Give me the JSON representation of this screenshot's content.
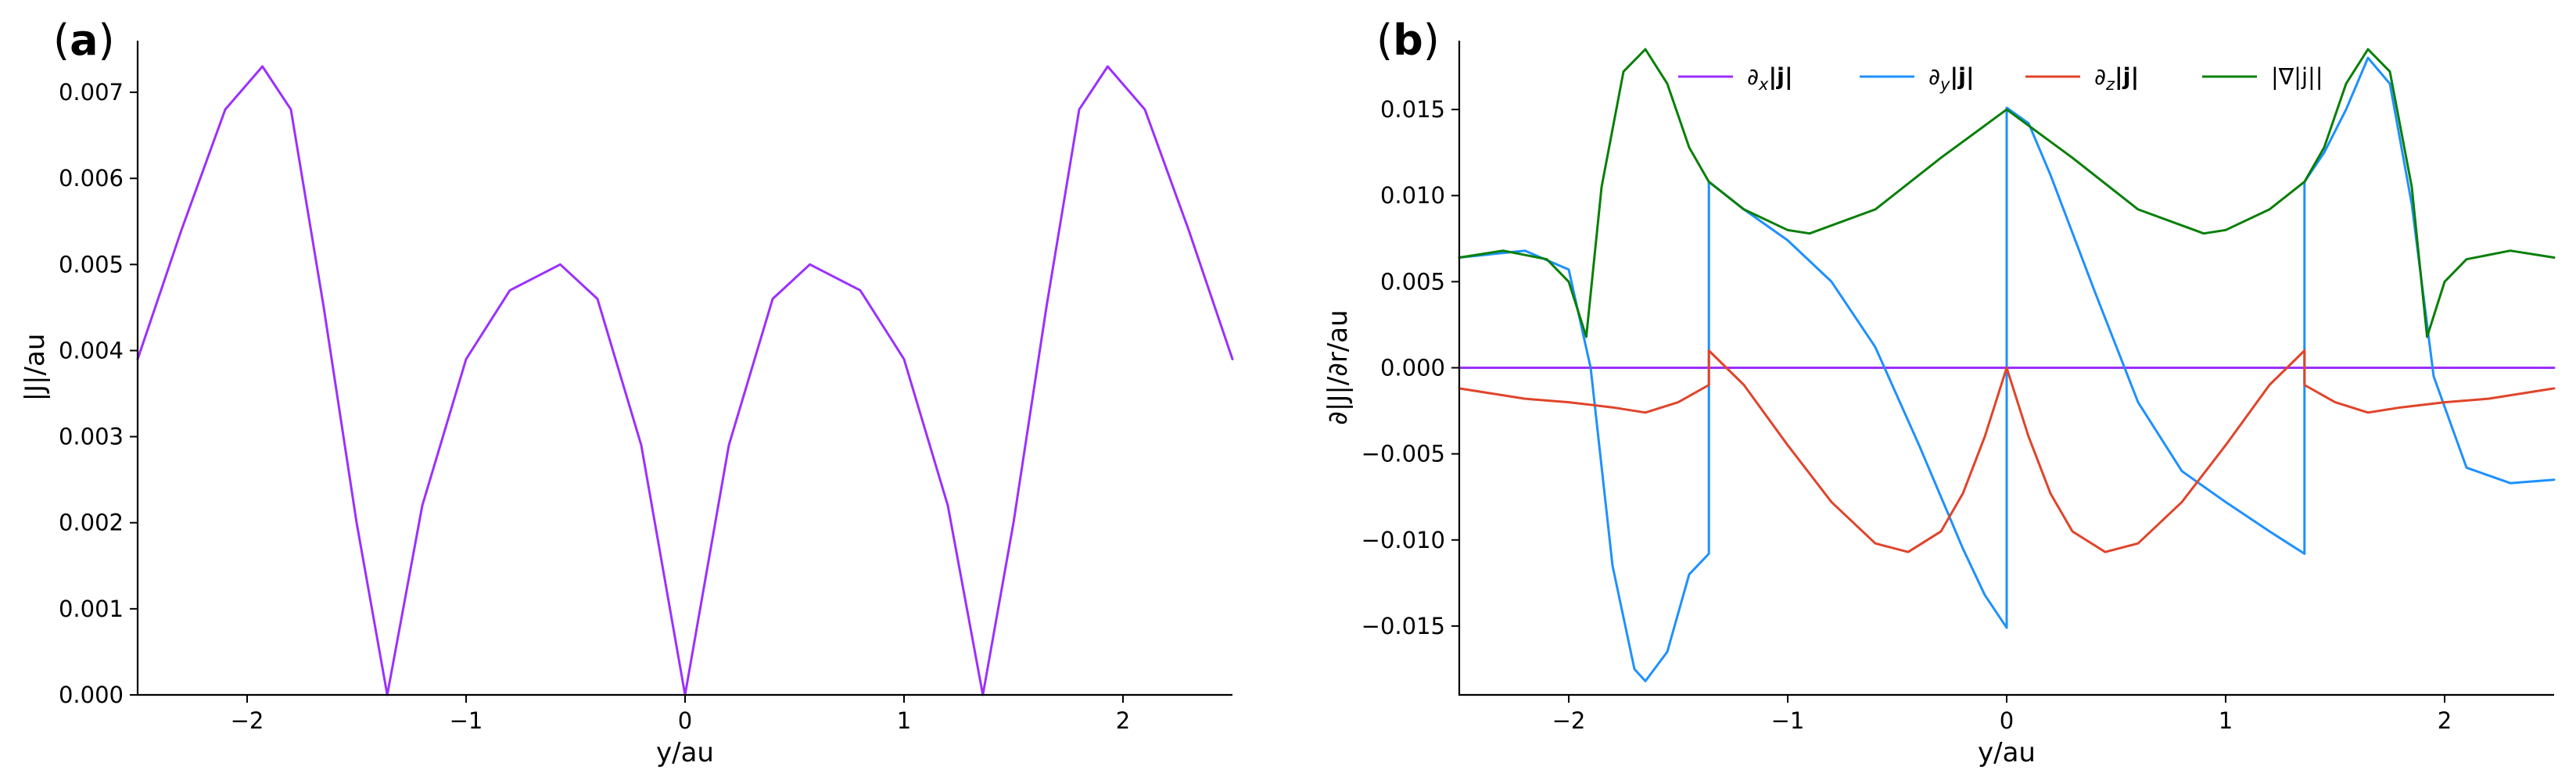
{
  "chart_data": [
    {
      "type": "line",
      "panel_label": "a",
      "xlabel": "y/au",
      "ylabel": "|J|/au",
      "xlim": [
        -2.5,
        2.5
      ],
      "ylim": [
        0,
        0.0076
      ],
      "xticks": [
        -2,
        -1,
        0,
        1,
        2
      ],
      "xtick_labels": [
        "−2",
        "−1",
        "0",
        "1",
        "2"
      ],
      "yticks": [
        0,
        0.001,
        0.002,
        0.003,
        0.004,
        0.005,
        0.006,
        0.007
      ],
      "ytick_labels": [
        "0.000",
        "0.001",
        "0.002",
        "0.003",
        "0.004",
        "0.005",
        "0.006",
        "0.007"
      ],
      "series": [
        {
          "name": "|J|",
          "color": "#9b30ff",
          "x": [
            -2.5,
            -2.3,
            -2.1,
            -1.93,
            -1.8,
            -1.65,
            -1.5,
            -1.36,
            -1.2,
            -1.0,
            -0.8,
            -0.57,
            -0.4,
            -0.2,
            0.0,
            0.2,
            0.4,
            0.57,
            0.8,
            1.0,
            1.2,
            1.36,
            1.5,
            1.65,
            1.8,
            1.93,
            2.1,
            2.3,
            2.5
          ],
          "y": [
            0.0039,
            0.0054,
            0.0068,
            0.0073,
            0.0068,
            0.0045,
            0.002,
            0.0,
            0.0022,
            0.0039,
            0.0047,
            0.005,
            0.0046,
            0.0029,
            0.0,
            0.0029,
            0.0046,
            0.005,
            0.0047,
            0.0039,
            0.0022,
            0.0,
            0.002,
            0.0045,
            0.0068,
            0.0073,
            0.0068,
            0.0054,
            0.0039
          ]
        }
      ]
    },
    {
      "type": "line",
      "panel_label": "b",
      "xlabel": "y/au",
      "ylabel": "∂|J|/∂r/au",
      "xlim": [
        -2.5,
        2.5
      ],
      "ylim": [
        -0.019,
        0.019
      ],
      "xticks": [
        -2,
        -1,
        0,
        1,
        2
      ],
      "xtick_labels": [
        "−2",
        "−1",
        "0",
        "1",
        "2"
      ],
      "yticks": [
        -0.015,
        -0.01,
        -0.005,
        0,
        0.005,
        0.01,
        0.015
      ],
      "ytick_labels": [
        "−0.015",
        "−0.010",
        "−0.005",
        "0.000",
        "0.005",
        "0.010",
        "0.015"
      ],
      "legend_position": "top",
      "series": [
        {
          "name": "∂x|j|",
          "legend_main": "∂",
          "legend_sub": "x",
          "legend_rest": "|j|",
          "color": "#9b30ff",
          "x": [
            -2.5,
            2.5
          ],
          "y": [
            0.0,
            0.0
          ]
        },
        {
          "name": "∂y|j|",
          "legend_main": "∂",
          "legend_sub": "y",
          "legend_rest": "|j|",
          "color": "#1e90ff",
          "x": [
            -2.5,
            -2.2,
            -2.0,
            -1.9,
            -1.8,
            -1.7,
            -1.65,
            -1.55,
            -1.45,
            -1.36,
            -1.36,
            -1.2,
            -1.0,
            -0.8,
            -0.6,
            -0.4,
            -0.2,
            -0.1,
            0.0,
            0.0,
            0.1,
            0.2,
            0.4,
            0.6,
            0.8,
            1.0,
            1.2,
            1.36,
            1.36,
            1.45,
            1.55,
            1.65,
            1.75,
            1.85,
            1.95,
            2.1,
            2.3,
            2.5
          ],
          "y": [
            0.0064,
            0.0068,
            0.0057,
            0.0,
            -0.0115,
            -0.0175,
            -0.0182,
            -0.0165,
            -0.012,
            -0.0108,
            0.0108,
            0.0092,
            0.0074,
            0.005,
            0.0012,
            -0.0045,
            -0.0105,
            -0.0132,
            -0.0151,
            0.0151,
            0.0142,
            0.0112,
            0.0045,
            -0.002,
            -0.006,
            -0.0078,
            -0.0095,
            -0.0108,
            0.0108,
            0.0125,
            0.015,
            0.018,
            0.0165,
            0.0095,
            -0.0005,
            -0.0058,
            -0.0067,
            -0.0065
          ]
        },
        {
          "name": "∂z|j|",
          "legend_main": "∂",
          "legend_sub": "z",
          "legend_rest": "|j|",
          "color": "#e0442a",
          "x": [
            -2.5,
            -2.2,
            -2.0,
            -1.8,
            -1.65,
            -1.5,
            -1.36,
            -1.36,
            -1.2,
            -1.0,
            -0.8,
            -0.6,
            -0.45,
            -0.3,
            -0.2,
            -0.1,
            0.0,
            0.1,
            0.2,
            0.3,
            0.45,
            0.6,
            0.8,
            1.0,
            1.2,
            1.36,
            1.36,
            1.5,
            1.65,
            1.8,
            2.0,
            2.2,
            2.5
          ],
          "y": [
            -0.0012,
            -0.0018,
            -0.002,
            -0.0023,
            -0.0026,
            -0.002,
            -0.001,
            0.001,
            -0.001,
            -0.0045,
            -0.0078,
            -0.0102,
            -0.0107,
            -0.0095,
            -0.0073,
            -0.004,
            0.0,
            -0.004,
            -0.0073,
            -0.0095,
            -0.0107,
            -0.0102,
            -0.0078,
            -0.0045,
            -0.001,
            0.001,
            -0.001,
            -0.002,
            -0.0026,
            -0.0023,
            -0.002,
            -0.0018,
            -0.0012
          ]
        },
        {
          "name": "|∇|j||",
          "legend_main": "|∇|j||",
          "legend_sub": "",
          "legend_rest": "",
          "color": "#087f08",
          "x": [
            -2.5,
            -2.3,
            -2.1,
            -2.0,
            -1.92,
            -1.85,
            -1.75,
            -1.65,
            -1.55,
            -1.45,
            -1.36,
            -1.2,
            -1.0,
            -0.9,
            -0.6,
            -0.3,
            0.0,
            0.3,
            0.6,
            0.9,
            1.0,
            1.2,
            1.36,
            1.45,
            1.55,
            1.65,
            1.75,
            1.85,
            1.92,
            2.0,
            2.1,
            2.3,
            2.5
          ],
          "y": [
            0.0064,
            0.0068,
            0.0063,
            0.005,
            0.0018,
            0.0105,
            0.0172,
            0.0185,
            0.0165,
            0.0128,
            0.0108,
            0.0092,
            0.008,
            0.0078,
            0.0092,
            0.0122,
            0.015,
            0.0122,
            0.0092,
            0.0078,
            0.008,
            0.0092,
            0.0108,
            0.0128,
            0.0165,
            0.0185,
            0.0172,
            0.0105,
            0.0018,
            0.005,
            0.0063,
            0.0068,
            0.0064
          ]
        }
      ]
    }
  ]
}
